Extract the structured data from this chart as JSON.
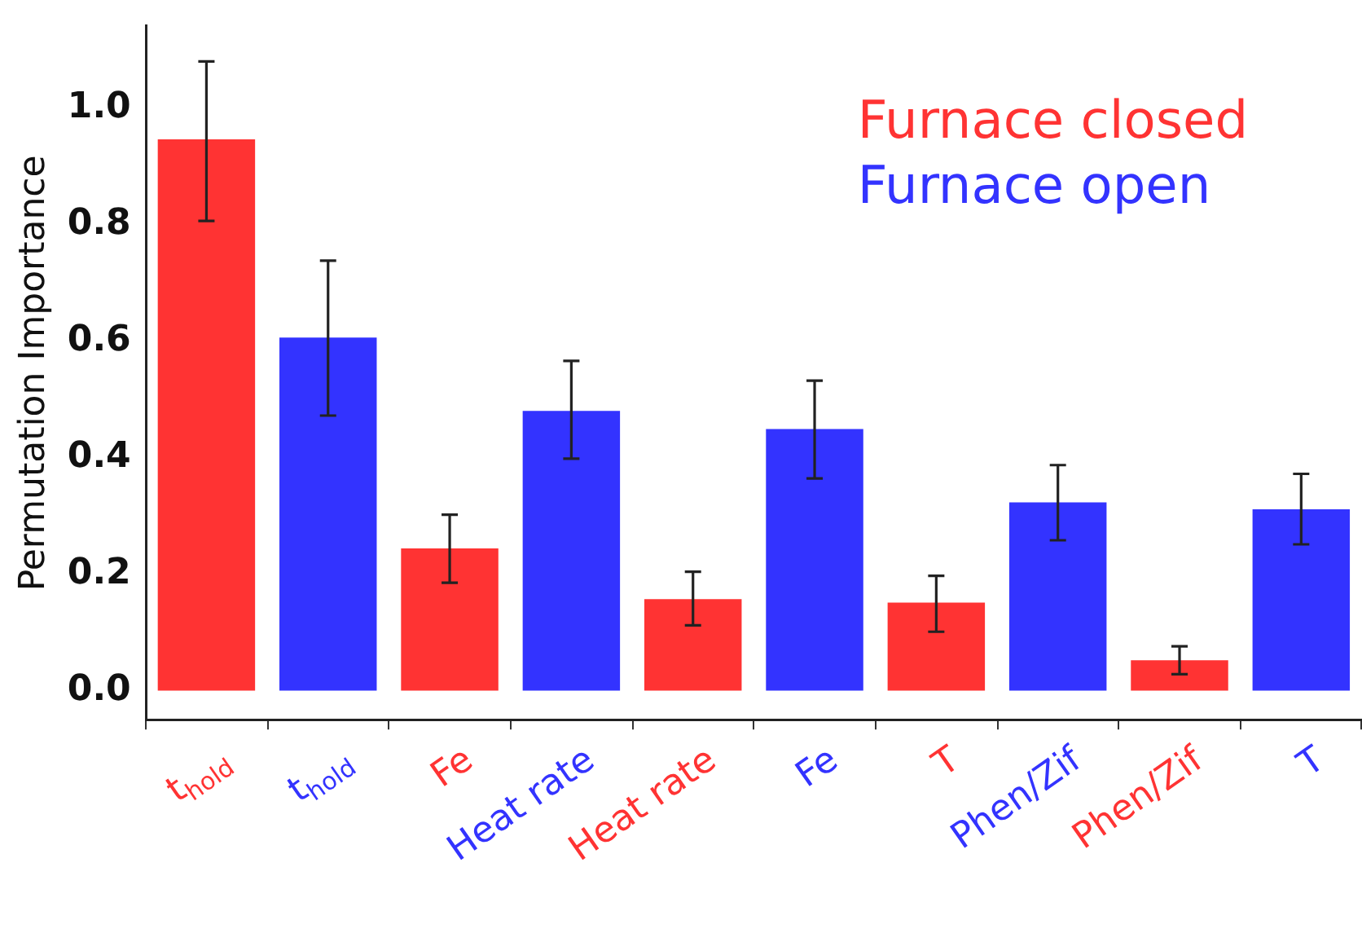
{
  "chart_data": {
    "type": "bar",
    "ylabel": "Permutation Importance",
    "categories": [
      "t$_{hold}$",
      "t$_{hold}$",
      "Fe",
      "Heat rate",
      "Heat rate",
      "Fe",
      "T",
      "Phen/Zif",
      "Phen/Zif",
      "T"
    ],
    "series": [
      {
        "name": "Furnace closed",
        "color": "#ff3333",
        "values": [
          0.946,
          null,
          0.244,
          null,
          0.157,
          null,
          0.151,
          null,
          0.052,
          null
        ],
        "errors": [
          [
            0.806,
            1.08
          ],
          null,
          [
            0.185,
            0.302
          ],
          null,
          [
            0.112,
            0.204
          ],
          null,
          [
            0.101,
            0.197
          ],
          null,
          [
            0.028,
            0.076
          ],
          null
        ]
      },
      {
        "name": "Furnace open",
        "color": "#3333ff",
        "values": [
          null,
          0.606,
          null,
          0.48,
          null,
          0.449,
          null,
          0.323,
          null,
          0.311
        ],
        "errors": [
          null,
          [
            0.472,
            0.738
          ],
          null,
          [
            0.398,
            0.566
          ],
          null,
          [
            0.364,
            0.532
          ],
          null,
          [
            0.258,
            0.387
          ],
          null,
          [
            0.251,
            0.372
          ]
        ]
      }
    ],
    "ylim": [
      -0.05,
      1.14
    ],
    "yticks": [
      {
        "value": 0,
        "label": "0.0"
      },
      {
        "value": 0.2,
        "label": "0.2"
      },
      {
        "value": 0.4,
        "label": "0.4"
      },
      {
        "value": 0.6,
        "label": "0.6"
      },
      {
        "value": 0.8,
        "label": "0.8"
      },
      {
        "value": 1,
        "label": "1.0"
      }
    ],
    "grid": false,
    "legend": "top right"
  }
}
